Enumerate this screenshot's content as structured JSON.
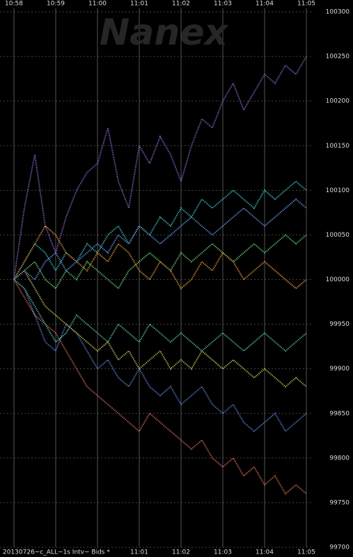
{
  "chart_data": {
    "type": "line",
    "watermark": "Nanex",
    "footer": "20130726~c_ALL~1s Intv~ Bids *",
    "xlim": [
      0,
      7
    ],
    "xticks": [
      {
        "value": 0,
        "label": "10:58"
      },
      {
        "value": 1,
        "label": "10:59"
      },
      {
        "value": 2,
        "label": "11:00"
      },
      {
        "value": 3,
        "label": "11:01"
      },
      {
        "value": 4,
        "label": "11:02"
      },
      {
        "value": 5,
        "label": "11:03"
      },
      {
        "value": 6,
        "label": "11:04"
      },
      {
        "value": 7,
        "label": "11:05"
      }
    ],
    "ylim": [
      99700,
      100300
    ],
    "yticks": [
      99700,
      99750,
      99800,
      99850,
      99900,
      99950,
      100000,
      100050,
      100100,
      100150,
      100200,
      100250,
      100300
    ],
    "grid": true,
    "x": [
      0,
      0.25,
      0.5,
      0.75,
      1,
      1.25,
      1.5,
      1.75,
      2,
      2.25,
      2.5,
      2.75,
      3,
      3.25,
      3.5,
      3.75,
      4,
      4.25,
      4.5,
      4.75,
      5,
      5.25,
      5.5,
      5.75,
      6,
      6.25,
      6.5,
      6.75,
      7
    ],
    "series": [
      {
        "color": "#9a6ee0",
        "values": [
          100000,
          100080,
          100140,
          100060,
          100030,
          100070,
          100100,
          100120,
          100130,
          100170,
          100110,
          100080,
          100150,
          100130,
          100160,
          100140,
          100110,
          100150,
          100180,
          100170,
          100200,
          100220,
          100190,
          100210,
          100230,
          100220,
          100240,
          100230,
          100250
        ]
      },
      {
        "color": "#ee7760",
        "values": [
          100000,
          99980,
          99960,
          99950,
          99940,
          99920,
          99900,
          99880,
          99870,
          99860,
          99850,
          99840,
          99830,
          99850,
          99840,
          99830,
          99820,
          99810,
          99820,
          99800,
          99790,
          99800,
          99780,
          99790,
          99770,
          99780,
          99760,
          99770,
          99760
        ]
      },
      {
        "color": "#6690ee",
        "values": [
          100000,
          99990,
          99960,
          99930,
          99920,
          99950,
          99940,
          99920,
          99900,
          99910,
          99890,
          99880,
          99900,
          99880,
          99870,
          99880,
          99860,
          99870,
          99880,
          99860,
          99850,
          99860,
          99840,
          99830,
          99840,
          99850,
          99830,
          99840,
          99850
        ]
      },
      {
        "color": "#e6e066",
        "values": [
          100000,
          100010,
          99990,
          99970,
          99960,
          99950,
          99940,
          99930,
          99920,
          99930,
          99910,
          99920,
          99900,
          99910,
          99920,
          99900,
          99910,
          99900,
          99920,
          99910,
          99900,
          99910,
          99900,
          99890,
          99900,
          99890,
          99880,
          99890,
          99880
        ]
      },
      {
        "color": "#44dddd",
        "values": [
          100000,
          100020,
          100040,
          100030,
          100010,
          100030,
          100020,
          100040,
          100030,
          100050,
          100060,
          100040,
          100060,
          100050,
          100070,
          100060,
          100080,
          100070,
          100090,
          100080,
          100090,
          100100,
          100090,
          100080,
          100100,
          100090,
          100100,
          100110,
          100100
        ]
      },
      {
        "color": "#77ee88",
        "values": [
          100000,
          100010,
          100020,
          100000,
          99990,
          100010,
          100000,
          100020,
          100010,
          100000,
          99990,
          100010,
          100020,
          100030,
          100020,
          100010,
          100030,
          100020,
          100030,
          100040,
          100030,
          100020,
          100030,
          100040,
          100030,
          100040,
          100050,
          100040,
          100050
        ]
      },
      {
        "color": "#ffaa44",
        "values": [
          100000,
          100020,
          100040,
          100060,
          100050,
          100030,
          100020,
          100010,
          100030,
          100020,
          100040,
          100030,
          100010,
          100000,
          100020,
          100010,
          99990,
          100000,
          100020,
          100010,
          100030,
          100020,
          100000,
          100010,
          100020,
          100010,
          100000,
          99990,
          100000
        ]
      },
      {
        "color": "#66ddbb",
        "values": [
          100000,
          99990,
          99970,
          99950,
          99930,
          99940,
          99960,
          99950,
          99940,
          99930,
          99950,
          99940,
          99930,
          99950,
          99940,
          99930,
          99940,
          99930,
          99920,
          99930,
          99940,
          99930,
          99920,
          99930,
          99940,
          99930,
          99920,
          99930,
          99940
        ]
      },
      {
        "color": "#77aaff",
        "values": [
          100000,
          100010,
          100000,
          100020,
          100030,
          100010,
          100020,
          100030,
          100040,
          100030,
          100050,
          100040,
          100060,
          100050,
          100040,
          100050,
          100060,
          100070,
          100060,
          100050,
          100060,
          100070,
          100080,
          100070,
          100060,
          100070,
          100080,
          100090,
          100080
        ]
      }
    ]
  }
}
